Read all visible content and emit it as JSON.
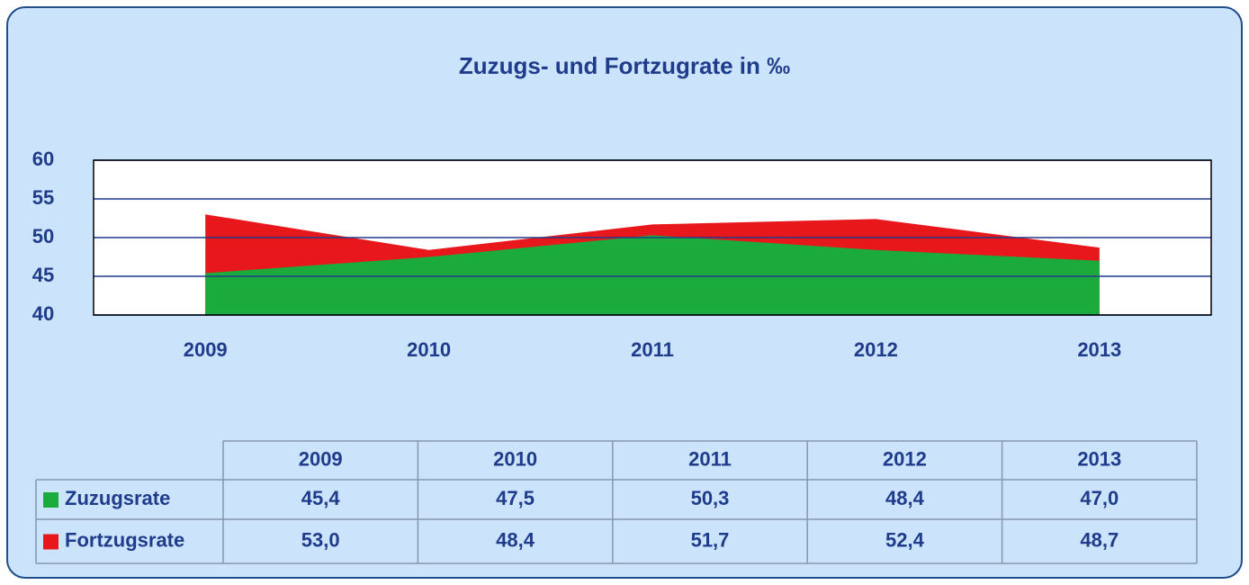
{
  "chart_data": {
    "type": "area",
    "title": "Zuzugs- und Fortzugrate in ‰",
    "categories": [
      "2009",
      "2010",
      "2011",
      "2012",
      "2013"
    ],
    "series": [
      {
        "name": "Zuzugsrate",
        "color": "#1aab3c",
        "values": [
          45.4,
          47.5,
          50.3,
          48.4,
          47.0
        ],
        "value_labels": [
          "45,4",
          "47,5",
          "50,3",
          "48,4",
          "47,0"
        ]
      },
      {
        "name": "Fortzugsrate",
        "color": "#e8171b",
        "values": [
          53.0,
          48.4,
          51.7,
          52.4,
          48.7
        ],
        "value_labels": [
          "53,0",
          "48,4",
          "51,7",
          "52,4",
          "48,7"
        ]
      }
    ],
    "ylim": [
      40,
      60
    ],
    "yticks": [
      40,
      45,
      50,
      55,
      60
    ],
    "grid": true
  }
}
